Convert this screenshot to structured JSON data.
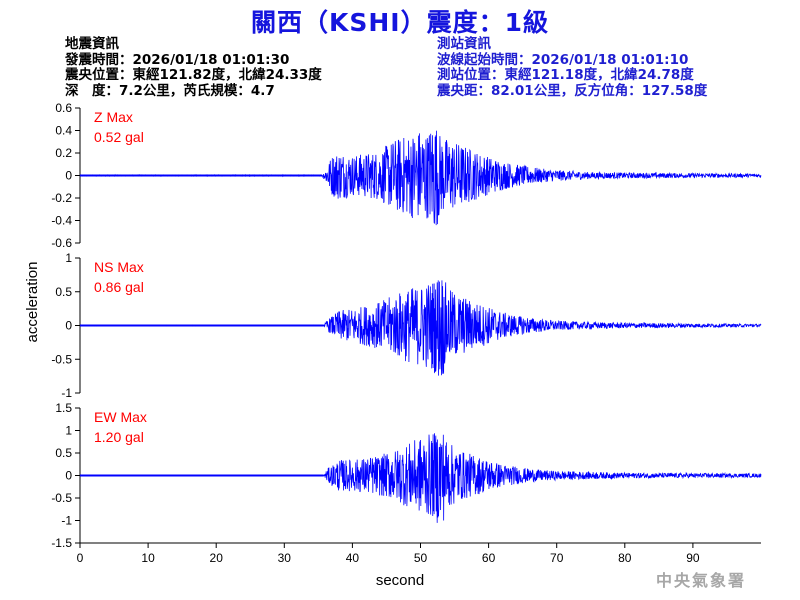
{
  "title": "關西（KSHI）震度：1級",
  "quake_info": {
    "heading": "地震資訊",
    "origin_time": "發震時間：2026/01/18 01:01:30",
    "epicenter": "震央位置：東經121.82度，北緯24.33度",
    "depth_magnitude": "深　度：7.2公里，芮氏規模：4.7"
  },
  "station_info": {
    "heading": "測站資訊",
    "wave_start_time": "波線起始時間：2026/01/18 01:01:10",
    "station_location": "測站位置：東經121.18度，北緯24.78度",
    "epicentral_distance": "震央距：82.01公里，反方位角：127.58度"
  },
  "watermark": "中央氣象署",
  "colors": {
    "trace": "#0000ff",
    "title": "#1515dd",
    "max_label": "#ff0000",
    "station_text": "#1f1fd0"
  },
  "chart_data": {
    "type": "line",
    "xlabel": "second",
    "ylabel": "acceleration",
    "xlim": [
      0,
      100
    ],
    "x_ticks": [
      0,
      10,
      20,
      30,
      40,
      50,
      60,
      70,
      80,
      90
    ],
    "grid": false,
    "panels": [
      {
        "name": "Z",
        "max_label": "Z Max",
        "max_value": "0.52 gal",
        "ylim": [
          -0.6,
          0.6
        ],
        "y_ticks": [
          0.6,
          0.4,
          0.2,
          0,
          -0.2,
          -0.4,
          -0.6
        ],
        "x": [
          0,
          35.5,
          36,
          37,
          38,
          40,
          42,
          44,
          46,
          48,
          50,
          51,
          52,
          53,
          54,
          56,
          58,
          60,
          62,
          64,
          66,
          68,
          70,
          75,
          80,
          90,
          100
        ],
        "envelope": [
          0.005,
          0.005,
          0.05,
          0.18,
          0.22,
          0.18,
          0.2,
          0.22,
          0.32,
          0.36,
          0.42,
          0.38,
          0.52,
          0.35,
          0.33,
          0.28,
          0.22,
          0.17,
          0.13,
          0.1,
          0.08,
          0.06,
          0.05,
          0.03,
          0.025,
          0.02,
          0.015
        ]
      },
      {
        "name": "NS",
        "max_label": "NS Max",
        "max_value": "0.86 gal",
        "ylim": [
          -1,
          1
        ],
        "y_ticks": [
          1,
          0.5,
          0,
          -0.5,
          -1
        ],
        "x": [
          0,
          35.8,
          36.3,
          38,
          40,
          42,
          44,
          46,
          48,
          50,
          52,
          53,
          54,
          56,
          58,
          60,
          62,
          64,
          66,
          68,
          70,
          75,
          80,
          90,
          100
        ],
        "envelope": [
          0.005,
          0.005,
          0.08,
          0.22,
          0.25,
          0.3,
          0.35,
          0.45,
          0.55,
          0.6,
          0.7,
          0.86,
          0.55,
          0.45,
          0.35,
          0.28,
          0.2,
          0.15,
          0.12,
          0.09,
          0.07,
          0.05,
          0.04,
          0.03,
          0.02
        ]
      },
      {
        "name": "EW",
        "max_label": "EW Max",
        "max_value": "1.20 gal",
        "ylim": [
          -1.5,
          1.5
        ],
        "y_ticks": [
          1.5,
          1,
          0.5,
          0,
          -0.5,
          -1,
          -1.5
        ],
        "x": [
          0,
          35.8,
          36.3,
          38,
          40,
          42,
          44,
          46,
          48,
          50,
          52,
          53,
          54,
          56,
          58,
          60,
          62,
          64,
          66,
          68,
          70,
          75,
          80,
          90,
          100
        ],
        "envelope": [
          0.005,
          0.005,
          0.15,
          0.35,
          0.35,
          0.4,
          0.45,
          0.55,
          0.7,
          0.85,
          0.95,
          1.2,
          0.75,
          0.55,
          0.45,
          0.35,
          0.25,
          0.2,
          0.15,
          0.12,
          0.1,
          0.08,
          0.06,
          0.05,
          0.04
        ]
      }
    ]
  }
}
